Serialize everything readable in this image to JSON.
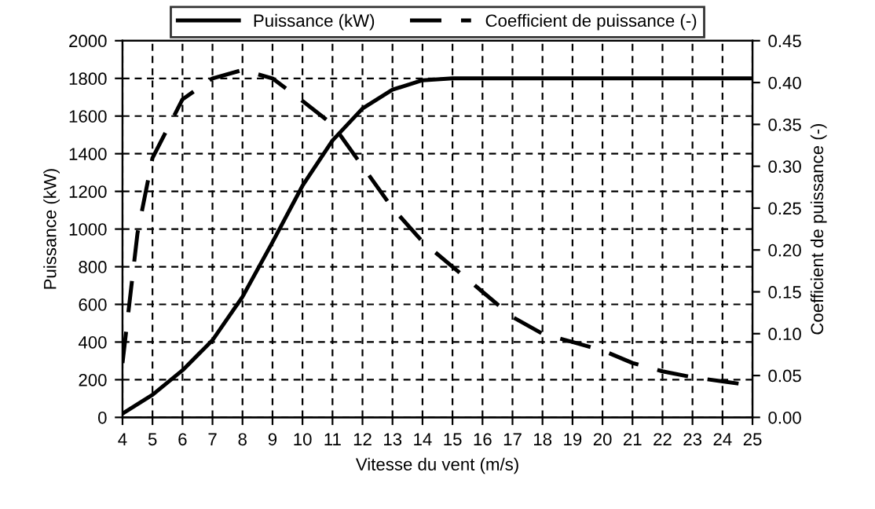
{
  "chart_data": {
    "type": "line",
    "xlabel": "Vitesse du vent (m/s)",
    "ylabel": "Puissance (kW)",
    "y2label": "Coefficient de puissance (-)",
    "xlim": [
      4,
      25
    ],
    "xticks": [
      4,
      5,
      6,
      7,
      8,
      9,
      10,
      11,
      12,
      13,
      14,
      15,
      16,
      17,
      18,
      19,
      20,
      21,
      22,
      23,
      24,
      25
    ],
    "ylim": [
      0,
      2000
    ],
    "yticks": [
      0,
      200,
      400,
      600,
      800,
      1000,
      1200,
      1400,
      1600,
      1800,
      2000
    ],
    "y2lim": [
      0,
      0.45
    ],
    "y2ticks": [
      {
        "value": 0,
        "label": "0.00"
      },
      {
        "value": 0.05,
        "label": "0.05"
      },
      {
        "value": 0.1,
        "label": "0.10"
      },
      {
        "value": 0.15,
        "label": "0.15"
      },
      {
        "value": 0.2,
        "label": "0.20"
      },
      {
        "value": 0.25,
        "label": "0.25"
      },
      {
        "value": 0.3,
        "label": "0.30"
      },
      {
        "value": 0.35,
        "label": "0.35"
      },
      {
        "value": 0.4,
        "label": "0.40"
      },
      {
        "value": 0.45,
        "label": "0.45"
      }
    ],
    "grid": true,
    "legend": "top",
    "marker": "none",
    "series": [
      {
        "name": "Puissance (kW)",
        "color": "#000000",
        "line_style": "solid",
        "x": [
          4,
          5,
          6,
          7,
          8,
          9,
          10,
          11,
          12,
          13,
          14,
          15,
          16,
          17,
          18,
          19,
          20,
          21,
          22,
          23,
          24,
          25
        ],
        "values": [
          20,
          120,
          250,
          410,
          640,
          930,
          1230,
          1470,
          1640,
          1740,
          1790,
          1800,
          1800,
          1800,
          1800,
          1800,
          1800,
          1800,
          1800,
          1800,
          1800,
          1800
        ]
      },
      {
        "name": "Coefficient de puissance (-)",
        "color": "#000000",
        "line_style": "dashed",
        "axis": "y2",
        "x": [
          4,
          4.5,
          5,
          6,
          7,
          8,
          9,
          10,
          11,
          12,
          13,
          14,
          15,
          16,
          17,
          18,
          19,
          20,
          21,
          22,
          23,
          24,
          25
        ],
        "values": [
          0.065,
          0.22,
          0.31,
          0.38,
          0.405,
          0.415,
          0.405,
          0.378,
          0.35,
          0.3,
          0.25,
          0.21,
          0.18,
          0.15,
          0.12,
          0.1,
          0.09,
          0.08,
          0.065,
          0.055,
          0.048,
          0.043,
          0.038
        ]
      }
    ]
  }
}
